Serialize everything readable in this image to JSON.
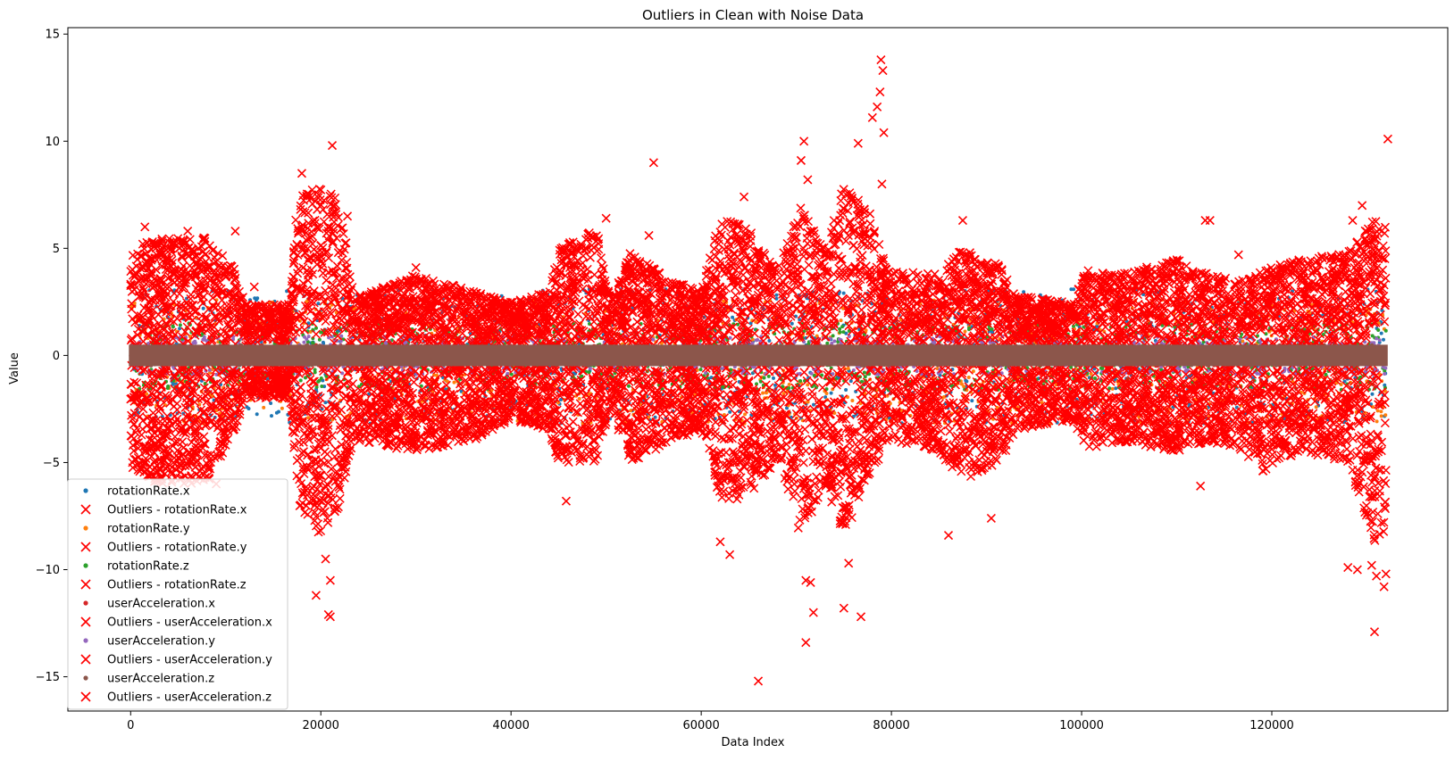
{
  "chart_data": {
    "type": "scatter",
    "title": "Outliers in Clean with Noise Data",
    "xlabel": "Data Index",
    "ylabel": "Value",
    "xlim": [
      -6600,
      138500
    ],
    "ylim": [
      -16.6,
      15.3
    ],
    "xticks": [
      0,
      20000,
      40000,
      60000,
      80000,
      100000,
      120000
    ],
    "xtick_labels": [
      "0",
      "20000",
      "40000",
      "60000",
      "80000",
      "100000",
      "120000"
    ],
    "yticks": [
      -15,
      -10,
      -5,
      0,
      5,
      10,
      15
    ],
    "ytick_labels": [
      "−15",
      "−10",
      "−5",
      "0",
      "5",
      "10",
      "15"
    ],
    "x_extent": [
      0,
      132000
    ],
    "grid": false,
    "legend_position": "lower-left",
    "outlier_color": "#ff0000",
    "series": [
      {
        "name": "rotationRate.x",
        "color": "#1f77b4",
        "marker": "dot",
        "band": [
          -3.2,
          3.1
        ]
      },
      {
        "name": "Outliers - rotationRate.x",
        "color": "#ff0000",
        "marker": "x"
      },
      {
        "name": "rotationRate.y",
        "color": "#ff7f0e",
        "marker": "dot",
        "band": [
          -3.2,
          2.6
        ]
      },
      {
        "name": "Outliers - rotationRate.y",
        "color": "#ff0000",
        "marker": "x"
      },
      {
        "name": "rotationRate.z",
        "color": "#2ca02c",
        "marker": "dot",
        "band": [
          -1.6,
          1.5
        ]
      },
      {
        "name": "Outliers - rotationRate.z",
        "color": "#ff0000",
        "marker": "x"
      },
      {
        "name": "userAcceleration.x",
        "color": "#d62728",
        "marker": "dot",
        "band": [
          -0.5,
          0.5
        ]
      },
      {
        "name": "Outliers - userAcceleration.x",
        "color": "#ff0000",
        "marker": "x"
      },
      {
        "name": "userAcceleration.y",
        "color": "#9467bd",
        "marker": "dot",
        "band": [
          -0.9,
          0.9
        ]
      },
      {
        "name": "Outliers - userAcceleration.y",
        "color": "#ff0000",
        "marker": "x"
      },
      {
        "name": "userAcceleration.z",
        "color": "#8c564b",
        "marker": "dot",
        "band": [
          -0.5,
          0.5
        ]
      },
      {
        "name": "Outliers - userAcceleration.z",
        "color": "#ff0000",
        "marker": "x"
      }
    ],
    "outlier_envelope": [
      {
        "x": 0,
        "top": 5.0,
        "bottom": -5.5
      },
      {
        "x": 3000,
        "top": 5.5,
        "bottom": -6.0
      },
      {
        "x": 8000,
        "top": 5.5,
        "bottom": -6.0
      },
      {
        "x": 11000,
        "top": 4.0,
        "bottom": -3.5
      },
      {
        "x": 12000,
        "top": 2.4,
        "bottom": -2.0
      },
      {
        "x": 16800,
        "top": 2.4,
        "bottom": -2.0
      },
      {
        "x": 17500,
        "top": 7.5,
        "bottom": -7.0
      },
      {
        "x": 21000,
        "top": 8.0,
        "bottom": -9.0
      },
      {
        "x": 22500,
        "top": 6.0,
        "bottom": -6.0
      },
      {
        "x": 23500,
        "top": 2.7,
        "bottom": -4.0
      },
      {
        "x": 30000,
        "top": 3.8,
        "bottom": -4.5
      },
      {
        "x": 36000,
        "top": 3.0,
        "bottom": -4.0
      },
      {
        "x": 40000,
        "top": 2.5,
        "bottom": -3.0
      },
      {
        "x": 44000,
        "top": 3.0,
        "bottom": -3.5
      },
      {
        "x": 45000,
        "top": 5.0,
        "bottom": -5.0
      },
      {
        "x": 49000,
        "top": 6.0,
        "bottom": -5.0
      },
      {
        "x": 50500,
        "top": 2.5,
        "bottom": -2.5
      },
      {
        "x": 52500,
        "top": 4.8,
        "bottom": -5.0
      },
      {
        "x": 57000,
        "top": 3.5,
        "bottom": -4.0
      },
      {
        "x": 60000,
        "top": 3.0,
        "bottom": -3.5
      },
      {
        "x": 62000,
        "top": 6.5,
        "bottom": -7.0
      },
      {
        "x": 65000,
        "top": 6.0,
        "bottom": -6.5
      },
      {
        "x": 68000,
        "top": 4.0,
        "bottom": -5.0
      },
      {
        "x": 70500,
        "top": 7.0,
        "bottom": -8.5
      },
      {
        "x": 73000,
        "top": 5.0,
        "bottom": -6.0
      },
      {
        "x": 75000,
        "top": 8.0,
        "bottom": -8.5
      },
      {
        "x": 77500,
        "top": 7.0,
        "bottom": -6.0
      },
      {
        "x": 79500,
        "top": 4.0,
        "bottom": -4.0
      },
      {
        "x": 85000,
        "top": 3.8,
        "bottom": -4.5
      },
      {
        "x": 87500,
        "top": 5.0,
        "bottom": -6.0
      },
      {
        "x": 91500,
        "top": 4.2,
        "bottom": -5.0
      },
      {
        "x": 93000,
        "top": 2.8,
        "bottom": -3.5
      },
      {
        "x": 99000,
        "top": 2.5,
        "bottom": -3.0
      },
      {
        "x": 100500,
        "top": 4.0,
        "bottom": -4.5
      },
      {
        "x": 104000,
        "top": 3.8,
        "bottom": -4.0
      },
      {
        "x": 110000,
        "top": 4.5,
        "bottom": -4.5
      },
      {
        "x": 113500,
        "top": 3.8,
        "bottom": -4.0
      },
      {
        "x": 117000,
        "top": 3.5,
        "bottom": -4.5
      },
      {
        "x": 119000,
        "top": 4.0,
        "bottom": -5.5
      },
      {
        "x": 123000,
        "top": 4.5,
        "bottom": -4.5
      },
      {
        "x": 128000,
        "top": 4.8,
        "bottom": -5.0
      },
      {
        "x": 131000,
        "top": 6.5,
        "bottom": -9.0
      },
      {
        "x": 132000,
        "top": 6.5,
        "bottom": -8.0
      }
    ],
    "extreme_outliers": [
      [
        1500,
        6.0
      ],
      [
        6000,
        5.8
      ],
      [
        9000,
        -6.0
      ],
      [
        11000,
        5.8
      ],
      [
        13000,
        3.2
      ],
      [
        18000,
        8.5
      ],
      [
        19500,
        -11.2
      ],
      [
        20500,
        -9.5
      ],
      [
        20800,
        -12.1
      ],
      [
        21000,
        -12.2
      ],
      [
        21200,
        9.8
      ],
      [
        21000,
        -10.5
      ],
      [
        22800,
        6.5
      ],
      [
        30000,
        4.1
      ],
      [
        45800,
        -6.8
      ],
      [
        50000,
        6.4
      ],
      [
        55000,
        9.0
      ],
      [
        54500,
        5.6
      ],
      [
        62000,
        -8.7
      ],
      [
        63000,
        -9.3
      ],
      [
        64500,
        7.4
      ],
      [
        66000,
        -15.2
      ],
      [
        68000,
        -4.8
      ],
      [
        70500,
        9.1
      ],
      [
        70800,
        10.0
      ],
      [
        71200,
        8.2
      ],
      [
        71000,
        -10.5
      ],
      [
        71500,
        -10.6
      ],
      [
        71800,
        -12.0
      ],
      [
        71000,
        -13.4
      ],
      [
        75000,
        -11.8
      ],
      [
        75500,
        -9.7
      ],
      [
        76500,
        9.9
      ],
      [
        76800,
        -12.2
      ],
      [
        78000,
        11.1
      ],
      [
        78500,
        11.6
      ],
      [
        78800,
        12.3
      ],
      [
        78900,
        13.8
      ],
      [
        79100,
        13.3
      ],
      [
        79200,
        10.4
      ],
      [
        79000,
        8.0
      ],
      [
        86000,
        -8.4
      ],
      [
        87500,
        6.3
      ],
      [
        90500,
        -7.6
      ],
      [
        112500,
        -6.1
      ],
      [
        113000,
        6.3
      ],
      [
        113500,
        6.3
      ],
      [
        116500,
        4.7
      ],
      [
        128500,
        6.3
      ],
      [
        129500,
        7.0
      ],
      [
        128000,
        -9.9
      ],
      [
        129000,
        -10.0
      ],
      [
        130500,
        -9.8
      ],
      [
        131000,
        -10.3
      ],
      [
        131800,
        -10.8
      ],
      [
        132000,
        -10.2
      ],
      [
        130800,
        -12.9
      ],
      [
        132200,
        10.1
      ]
    ]
  }
}
